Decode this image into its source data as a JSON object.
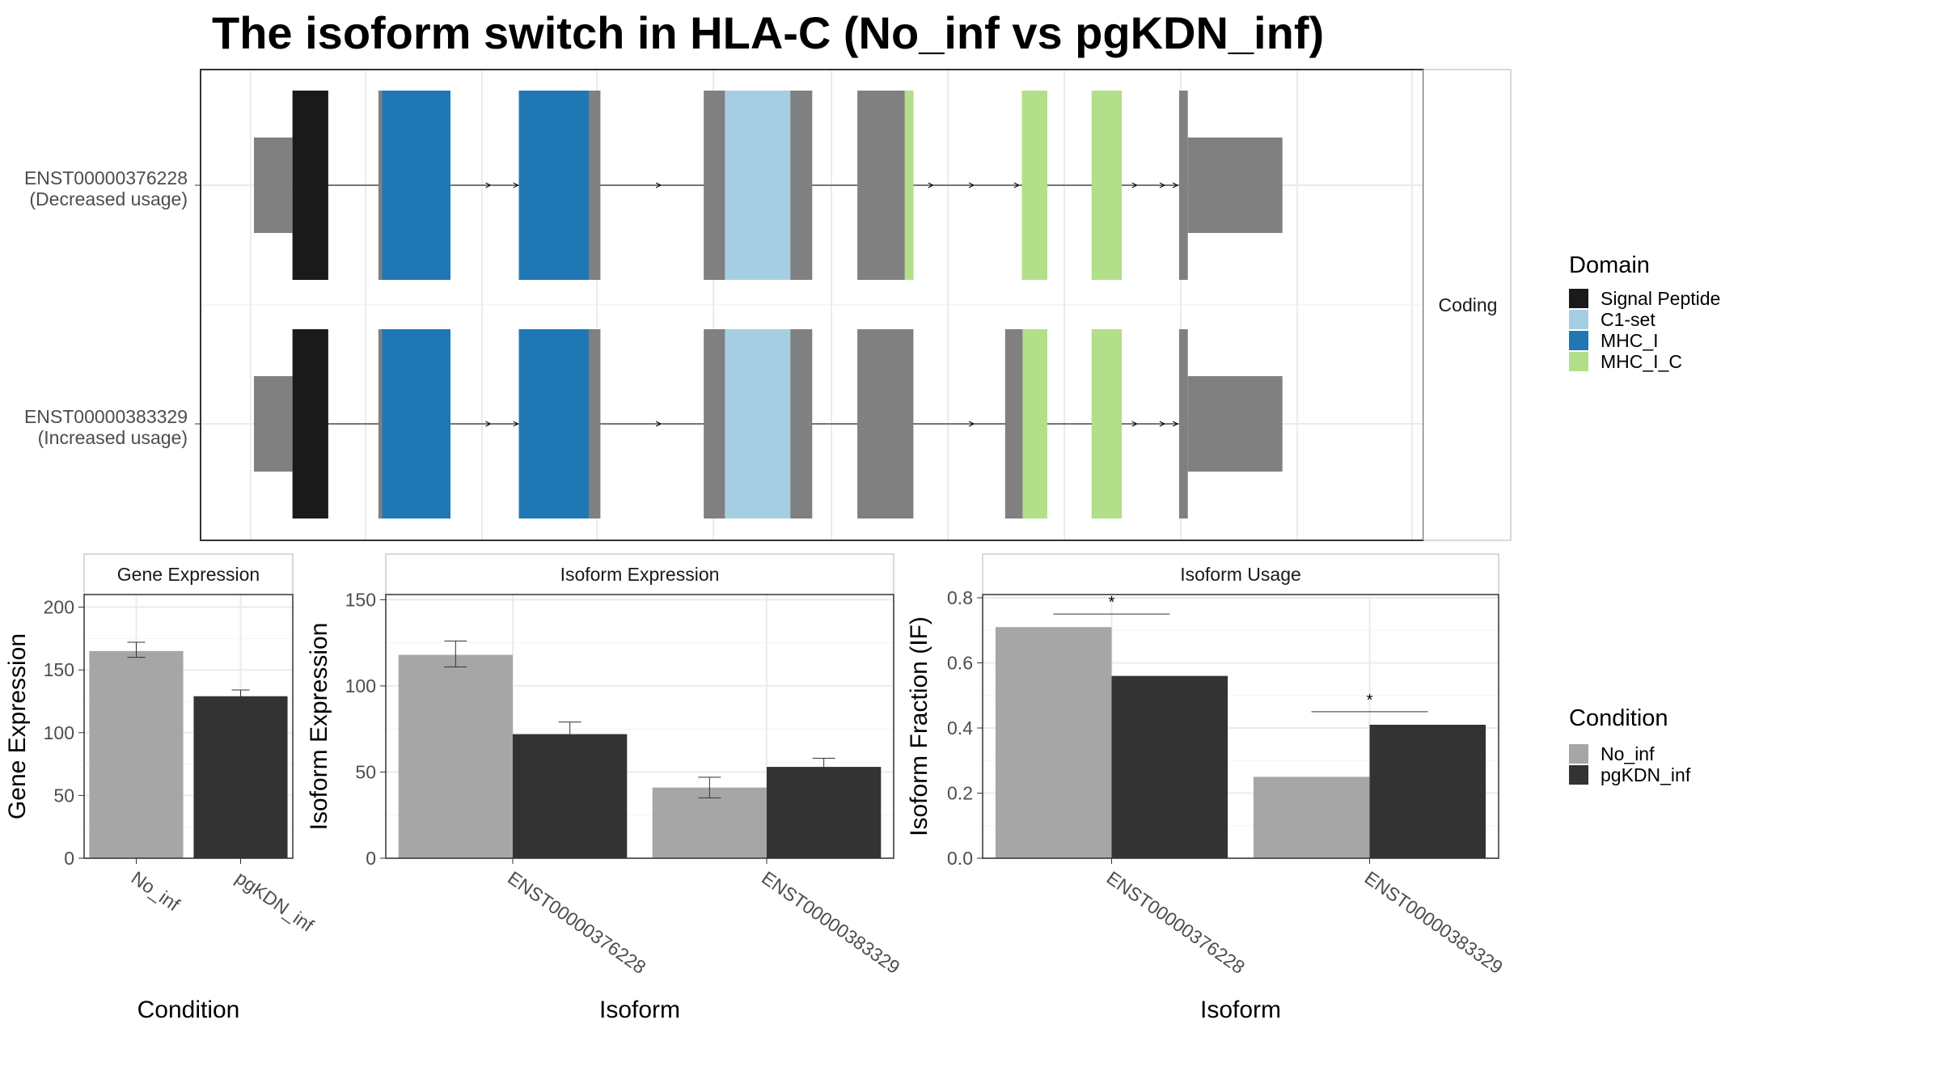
{
  "title": "The isoform switch in HLA-C (No_inf vs pgKDN_inf)",
  "colors": {
    "no_inf": "#a6a6a6",
    "pgkdn_inf": "#333333",
    "utr": "#808080",
    "signal_peptide": "#1a1a1a",
    "c1_set": "#a6cee3",
    "mhc_i": "#1f78b4",
    "mhc_i_c": "#b2df8a"
  },
  "chart_data": [
    {
      "type": "gene_structure",
      "strip_label": "Coding",
      "isoforms": [
        {
          "id": "ENST00000376228",
          "label_line1": "ENST00000376228",
          "label_line2": "(Decreased usage)",
          "exons": [
            {
              "start": 0,
              "end": 53,
              "kind": "utr"
            },
            {
              "start": 53,
              "end": 102,
              "kind": "cds",
              "domain": "signal_peptide"
            },
            {
              "start": 171,
              "end": 270,
              "kind": "cds",
              "domain": "mhc_i"
            },
            {
              "start": 364,
              "end": 476,
              "kind": "cds",
              "domain": "mhc_i"
            },
            {
              "start": 618,
              "end": 767,
              "kind": "cds",
              "domain": "c1_set"
            },
            {
              "start": 829,
              "end": 906,
              "kind": "cds",
              "domain": "mhc_i_c"
            },
            {
              "start": 1055,
              "end": 1090,
              "kind": "cds",
              "domain": "mhc_i_c"
            },
            {
              "start": 1151,
              "end": 1192,
              "kind": "cds",
              "domain": "mhc_i_c"
            },
            {
              "start": 1271,
              "end": 1283,
              "kind": "cds"
            },
            {
              "start": 1283,
              "end": 1413,
              "kind": "utr"
            }
          ],
          "domains": [
            {
              "domain": "signal_peptide",
              "start": 53,
              "end": 102
            },
            {
              "domain": "mhc_i",
              "start": 176,
              "end": 270
            },
            {
              "domain": "mhc_i",
              "start": 364,
              "end": 460
            },
            {
              "domain": "c1_set",
              "start": 647,
              "end": 737
            },
            {
              "domain": "mhc_i_c",
              "start": 894,
              "end": 906
            },
            {
              "domain": "mhc_i_c",
              "start": 1055,
              "end": 1090
            },
            {
              "domain": "mhc_i_c",
              "start": 1151,
              "end": 1192
            }
          ],
          "arrows": [
            325,
            363,
            559,
            933,
            989,
            1051,
            1213,
            1251,
            1269
          ]
        },
        {
          "id": "ENST00000383329",
          "label_line1": "ENST00000383329",
          "label_line2": "(Increased usage)",
          "exons": [
            {
              "start": 0,
              "end": 53,
              "kind": "utr"
            },
            {
              "start": 53,
              "end": 102,
              "kind": "cds",
              "domain": "signal_peptide"
            },
            {
              "start": 171,
              "end": 270,
              "kind": "cds",
              "domain": "mhc_i"
            },
            {
              "start": 364,
              "end": 476,
              "kind": "cds",
              "domain": "mhc_i"
            },
            {
              "start": 618,
              "end": 767,
              "kind": "cds",
              "domain": "c1_set"
            },
            {
              "start": 829,
              "end": 906,
              "kind": "cds"
            },
            {
              "start": 1032,
              "end": 1090,
              "kind": "cds",
              "domain": "mhc_i_c"
            },
            {
              "start": 1151,
              "end": 1192,
              "kind": "cds",
              "domain": "mhc_i_c"
            },
            {
              "start": 1271,
              "end": 1283,
              "kind": "cds"
            },
            {
              "start": 1283,
              "end": 1413,
              "kind": "utr"
            }
          ],
          "domains": [
            {
              "domain": "signal_peptide",
              "start": 53,
              "end": 102
            },
            {
              "domain": "mhc_i",
              "start": 176,
              "end": 270
            },
            {
              "domain": "mhc_i",
              "start": 364,
              "end": 460
            },
            {
              "domain": "c1_set",
              "start": 647,
              "end": 737
            },
            {
              "domain": "mhc_i_c",
              "start": 1056,
              "end": 1090
            },
            {
              "domain": "mhc_i_c",
              "start": 1151,
              "end": 1192
            }
          ],
          "arrows": [
            325,
            363,
            559,
            989,
            1051,
            1213,
            1251,
            1269
          ]
        }
      ],
      "legend": {
        "title": "Domain",
        "items": [
          {
            "label": "Signal Peptide",
            "domain": "signal_peptide"
          },
          {
            "label": "C1-set",
            "domain": "c1_set"
          },
          {
            "label": "MHC_I",
            "domain": "mhc_i"
          },
          {
            "label": "MHC_I_C",
            "domain": "mhc_i_c"
          }
        ]
      }
    },
    {
      "type": "bar",
      "strip_label": "Gene Expression",
      "xlabel": "Condition",
      "ylabel": "Gene Expression",
      "ylim": [
        0,
        210
      ],
      "yticks": [
        0,
        50,
        100,
        150,
        200
      ],
      "categories": [
        "No_inf",
        "pgKDN_inf"
      ],
      "values": [
        165,
        129
      ],
      "errors": [
        [
          160,
          172
        ],
        [
          124,
          134
        ]
      ]
    },
    {
      "type": "bar",
      "strip_label": "Isoform Expression",
      "xlabel": "Isoform",
      "ylabel": "Isoform Expression",
      "ylim": [
        0,
        153
      ],
      "yticks": [
        0,
        50,
        100,
        150
      ],
      "categories": [
        "ENST00000376228",
        "ENST00000383329"
      ],
      "series": [
        {
          "name": "No_inf",
          "values": [
            118,
            41
          ],
          "errors": [
            [
              111,
              126
            ],
            [
              35,
              47
            ]
          ]
        },
        {
          "name": "pgKDN_inf",
          "values": [
            72,
            53
          ],
          "errors": [
            [
              66,
              79
            ],
            [
              48,
              58
            ]
          ]
        }
      ]
    },
    {
      "type": "bar",
      "strip_label": "Isoform Usage",
      "xlabel": "Isoform",
      "ylabel": "Isoform Fraction (IF)",
      "ylim": [
        0,
        0.81
      ],
      "yticks": [
        0.0,
        0.2,
        0.4,
        0.6,
        0.8
      ],
      "ytick_labels": [
        "0.0",
        "0.2",
        "0.4",
        "0.6",
        "0.8"
      ],
      "categories": [
        "ENST00000376228",
        "ENST00000383329"
      ],
      "series": [
        {
          "name": "No_inf",
          "values": [
            0.71,
            0.25
          ]
        },
        {
          "name": "pgKDN_inf",
          "values": [
            0.56,
            0.41
          ]
        }
      ],
      "significance": [
        {
          "category": "ENST00000376228",
          "label": "*",
          "y": 0.75
        },
        {
          "category": "ENST00000383329",
          "label": "*",
          "y": 0.45
        }
      ]
    }
  ],
  "condition_legend": {
    "title": "Condition",
    "items": [
      {
        "label": "No_inf",
        "key": "no_inf"
      },
      {
        "label": "pgKDN_inf",
        "key": "pgkdn_inf"
      }
    ]
  }
}
